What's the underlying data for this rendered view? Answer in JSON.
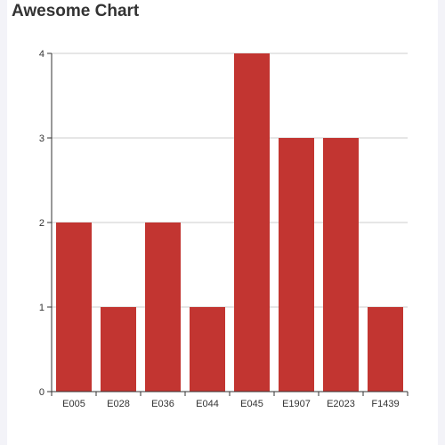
{
  "chart_data": {
    "type": "bar",
    "title": "Awesome Chart",
    "categories": [
      "E005",
      "E028",
      "E036",
      "E044",
      "E045",
      "E1907",
      "E2023",
      "F1439"
    ],
    "values": [
      2,
      1,
      2,
      1,
      4,
      3,
      3,
      1
    ],
    "ylim": [
      0,
      4
    ],
    "yticks": [
      0,
      1,
      2,
      3,
      4
    ],
    "grid": true,
    "colors": {
      "bar": "#c23531",
      "grid": "#cccccc",
      "axis": "#333333",
      "text": "#333333"
    }
  }
}
